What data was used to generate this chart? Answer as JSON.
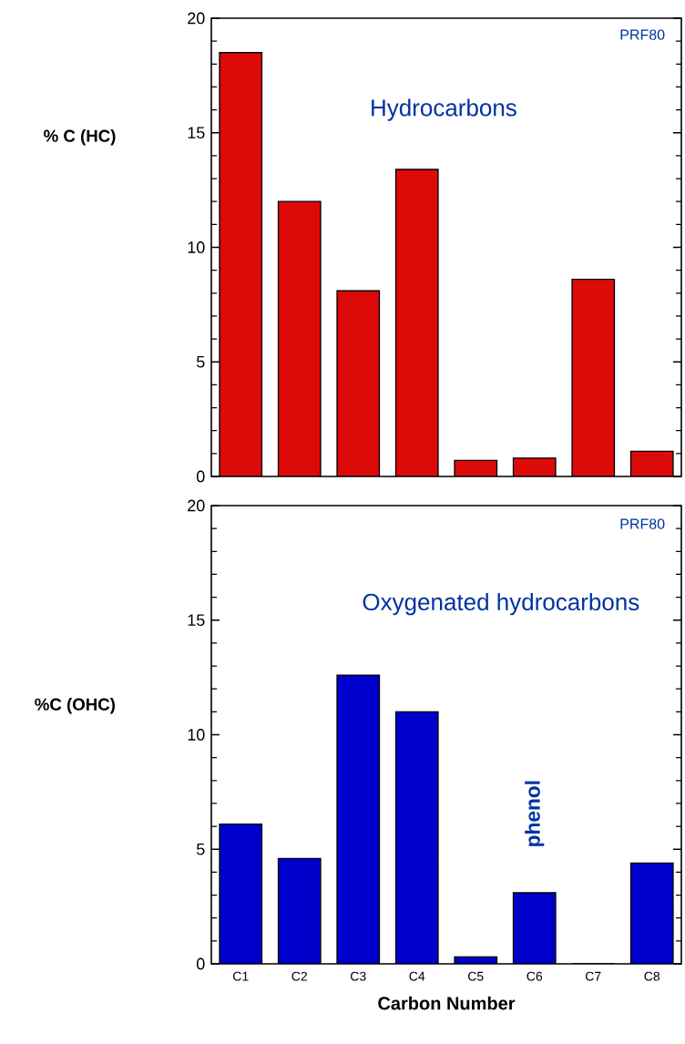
{
  "chart_data": [
    {
      "type": "bar",
      "ylabel": "% C (HC)",
      "categories": [
        null,
        null,
        null,
        null,
        null,
        null,
        null,
        null
      ],
      "values": [
        18.5,
        12.0,
        8.1,
        13.4,
        0.7,
        0.8,
        8.6,
        1.1
      ],
      "color": "#dd0a0a",
      "ylim": [
        0,
        20
      ],
      "yticks": [
        0,
        5,
        10,
        15,
        20
      ],
      "tick_labels": "y",
      "annotations": [
        "PRF80",
        "Hydrocarbons"
      ]
    },
    {
      "type": "bar",
      "ylabel": "%C (OHC)",
      "xlabel": "Carbon Number",
      "categories": [
        "C1",
        "C2",
        "C3",
        "C4",
        "C5",
        "C6",
        "C7",
        "C8"
      ],
      "values": [
        6.1,
        4.6,
        12.6,
        11.0,
        0.3,
        3.1,
        0,
        4.4
      ],
      "color": "#0000cc",
      "ylim": [
        0,
        20
      ],
      "yticks": [
        0,
        5,
        10,
        15,
        20
      ],
      "annotations": [
        "PRF80",
        "Oxygenated hydrocarbons",
        {
          "text": "phenol",
          "x": "C6",
          "y": 3.1
        }
      ]
    }
  ]
}
